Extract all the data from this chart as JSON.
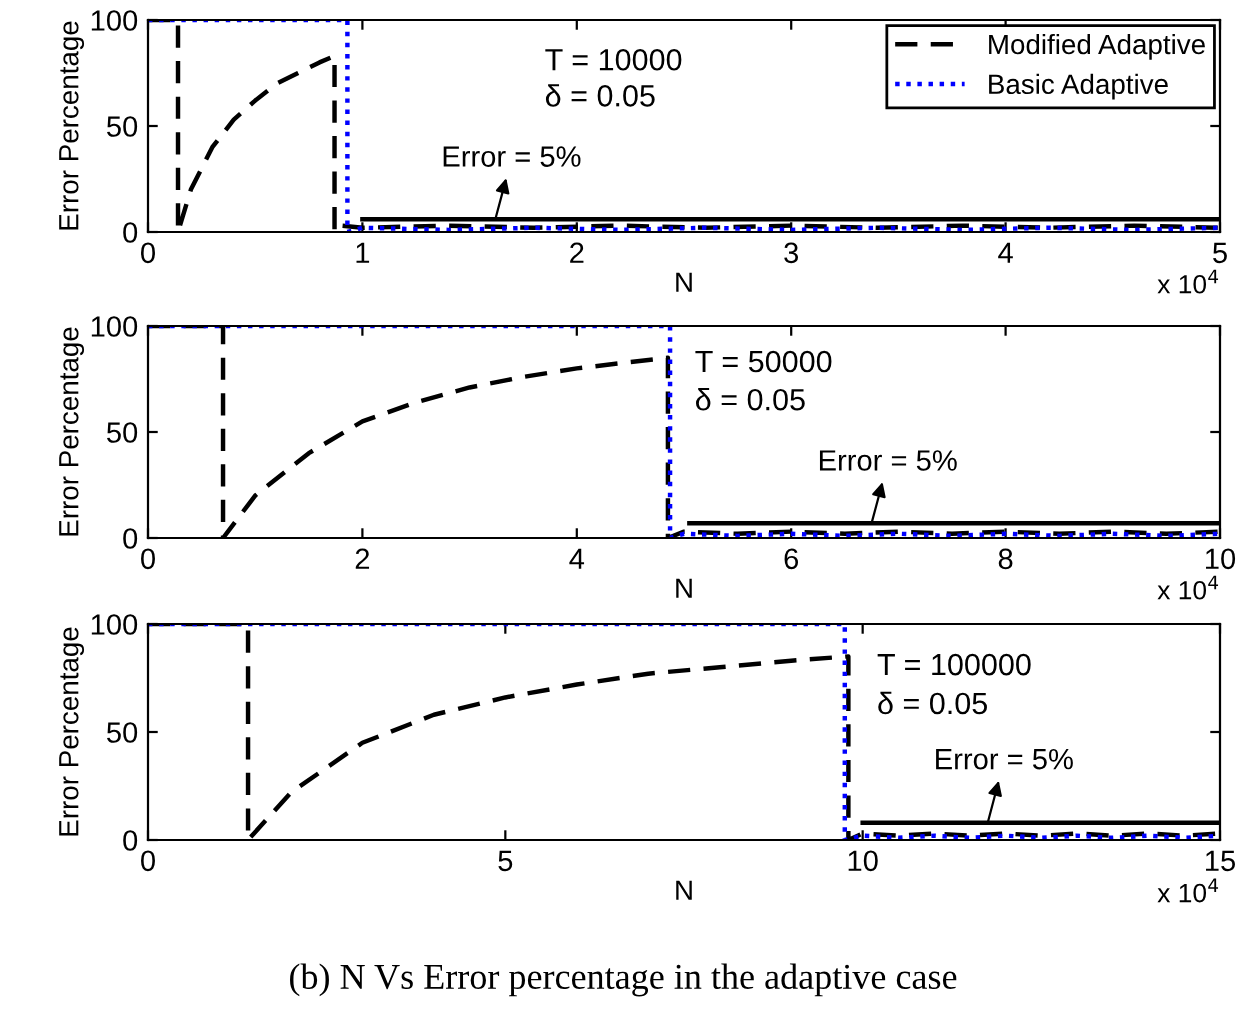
{
  "chart_data": [
    {
      "type": "line",
      "xlabel": "N",
      "ylabel": "Error Percentage",
      "xlim": [
        0,
        5
      ],
      "xticks": [
        0,
        1,
        2,
        3,
        4,
        5
      ],
      "ylim": [
        0,
        100
      ],
      "yticks": [
        0,
        50,
        100
      ],
      "grid": false,
      "legend": "top right",
      "annotations": [
        "T = 10000",
        "δ = 0.05",
        "x 10$^{4}$",
        {
          "text": "Error = 5%",
          "x": 1.62,
          "y": 6
        }
      ],
      "series": [
        {
          "name": "Modified Adaptive",
          "color": "#000000",
          "line_style": "dashed",
          "x": [
            0,
            0.14,
            0.14,
            0.2,
            0.3,
            0.4,
            0.5,
            0.6,
            0.7,
            0.8,
            0.87,
            0.87,
            0.9,
            1.0,
            1.4,
            1.8,
            2.2,
            2.6,
            3.0,
            3.4,
            3.8,
            4.2,
            4.6,
            5.0
          ],
          "values": [
            100,
            100,
            0,
            20,
            40,
            53,
            62,
            70,
            75,
            80,
            83,
            0,
            3,
            2,
            3,
            2,
            3,
            2,
            3,
            2,
            3,
            2,
            3,
            2
          ]
        },
        {
          "name": "Basic Adaptive",
          "color": "#0000ff",
          "line_style": "dotted",
          "x": [
            0,
            0.93,
            0.93,
            1.0,
            1.4,
            1.8,
            2.2,
            2.6,
            3.0,
            3.4,
            3.8,
            4.2,
            4.6,
            5.0
          ],
          "values": [
            100,
            100,
            0,
            2,
            1,
            2,
            1,
            2,
            1,
            2,
            1,
            2,
            1,
            2
          ]
        },
        {
          "color": "#000000",
          "line_style": "solid",
          "x": [
            1.0,
            5.0
          ],
          "values": [
            6,
            6
          ]
        }
      ]
    },
    {
      "type": "line",
      "xlabel": "N",
      "ylabel": "Error Percentage",
      "xlim": [
        0,
        10
      ],
      "xticks": [
        0,
        2,
        4,
        6,
        8,
        10
      ],
      "ylim": [
        0,
        100
      ],
      "yticks": [
        0,
        50,
        100
      ],
      "grid": false,
      "annotations": [
        "T = 50000",
        "δ = 0.05",
        "x 10$^{4}$",
        {
          "text": "Error = 5%",
          "x": 6.75,
          "y": 7
        }
      ],
      "series": [
        {
          "color": "#000000",
          "line_style": "dashed",
          "x": [
            0,
            0.7,
            0.7,
            1.0,
            1.5,
            2.0,
            2.5,
            3.0,
            3.5,
            4.0,
            4.5,
            4.85,
            4.85,
            5.0,
            5.5,
            6.0,
            6.5,
            7.0,
            7.5,
            8.0,
            8.5,
            9.0,
            9.5,
            10.0
          ],
          "values": [
            100,
            100,
            0,
            20,
            40,
            55,
            64,
            71,
            76,
            80,
            83,
            85,
            0,
            3,
            2,
            3,
            2,
            3,
            2,
            3,
            2,
            3,
            2,
            3
          ]
        },
        {
          "color": "#0000ff",
          "line_style": "dotted",
          "x": [
            0,
            4.87,
            4.87,
            5.0,
            5.5,
            6.0,
            6.5,
            7.0,
            7.5,
            8.0,
            8.5,
            9.0,
            9.5,
            10.0
          ],
          "values": [
            100,
            100,
            0,
            2,
            1,
            2,
            1,
            2,
            1,
            2,
            1,
            2,
            1,
            2
          ]
        },
        {
          "color": "#000000",
          "line_style": "solid",
          "x": [
            5.05,
            10.0
          ],
          "values": [
            7,
            7
          ]
        }
      ]
    },
    {
      "type": "line",
      "xlabel": "N",
      "ylabel": "Error Percentage",
      "xlim": [
        0,
        15
      ],
      "xticks": [
        0,
        5,
        10,
        15
      ],
      "ylim": [
        0,
        100
      ],
      "yticks": [
        0,
        50,
        100
      ],
      "grid": false,
      "annotations": [
        "T = 100000",
        "δ = 0.05",
        "x 10$^{4}$",
        {
          "text": "Error = 5%",
          "x": 11.75,
          "y": 8
        },
        "(b) N Vs Error percentage in the adaptive case"
      ],
      "series": [
        {
          "color": "#000000",
          "line_style": "dashed",
          "x": [
            0,
            1.4,
            1.4,
            2.0,
            3.0,
            4.0,
            5.0,
            6.0,
            7.0,
            8.0,
            9.0,
            9.8,
            9.8,
            10.0,
            10.5,
            11.0,
            11.5,
            12.0,
            12.5,
            13.0,
            13.5,
            14.0,
            14.5,
            15.0
          ],
          "values": [
            100,
            100,
            0,
            22,
            45,
            58,
            66,
            72,
            77,
            80,
            83,
            85,
            0,
            3,
            2,
            3,
            2,
            3,
            2,
            3,
            2,
            3,
            2,
            3
          ]
        },
        {
          "color": "#0000ff",
          "line_style": "dotted",
          "x": [
            0,
            9.75,
            9.75,
            10.0,
            10.5,
            11.0,
            11.5,
            12.0,
            12.5,
            13.0,
            13.5,
            14.0,
            14.5,
            15.0
          ],
          "values": [
            100,
            100,
            0,
            2,
            1,
            2,
            1,
            2,
            1,
            2,
            1,
            2,
            1,
            2
          ]
        },
        {
          "color": "#000000",
          "line_style": "solid",
          "x": [
            10.0,
            15.0
          ],
          "values": [
            8,
            8
          ]
        }
      ]
    }
  ]
}
